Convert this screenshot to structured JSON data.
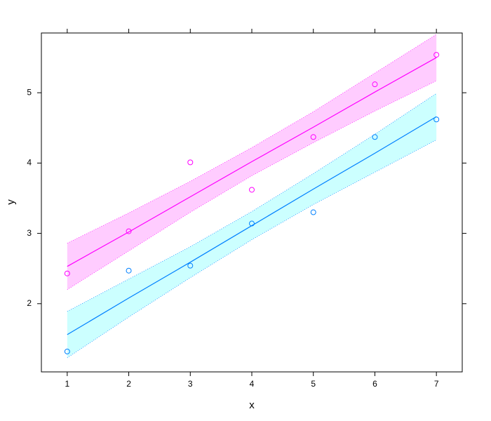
{
  "chart_data": {
    "type": "scatter",
    "x_label": "x",
    "y_label": "y",
    "x": [
      1,
      2,
      3,
      4,
      5,
      6,
      7
    ],
    "xlim": [
      0.58,
      7.42
    ],
    "ylim": [
      1.03,
      5.85
    ],
    "xticks": [
      1,
      2,
      3,
      4,
      5,
      6,
      7
    ],
    "yticks": [
      2,
      3,
      4,
      5
    ],
    "series": [
      {
        "color": "#ff00ff",
        "band_color": "#ffccff",
        "values": [
          2.43,
          3.03,
          4.01,
          3.62,
          4.37,
          5.12,
          5.54
        ],
        "fit": [
          2.53,
          3.02,
          3.52,
          4.02,
          4.51,
          5.01,
          5.5
        ],
        "upper": [
          2.86,
          3.29,
          3.74,
          4.22,
          4.73,
          5.28,
          5.83
        ],
        "lower": [
          2.2,
          2.75,
          3.3,
          3.82,
          4.29,
          4.74,
          5.17
        ]
      },
      {
        "color": "#0080ff",
        "band_color": "#ccffff",
        "values": [
          1.32,
          2.47,
          2.54,
          3.14,
          3.3,
          4.37,
          4.62
        ],
        "fit": [
          1.56,
          2.08,
          2.59,
          3.11,
          3.63,
          4.14,
          4.66
        ],
        "upper": [
          1.89,
          2.35,
          2.81,
          3.31,
          3.85,
          4.41,
          4.99
        ],
        "lower": [
          1.23,
          1.81,
          2.37,
          2.91,
          3.41,
          3.87,
          4.33
        ]
      }
    ]
  }
}
